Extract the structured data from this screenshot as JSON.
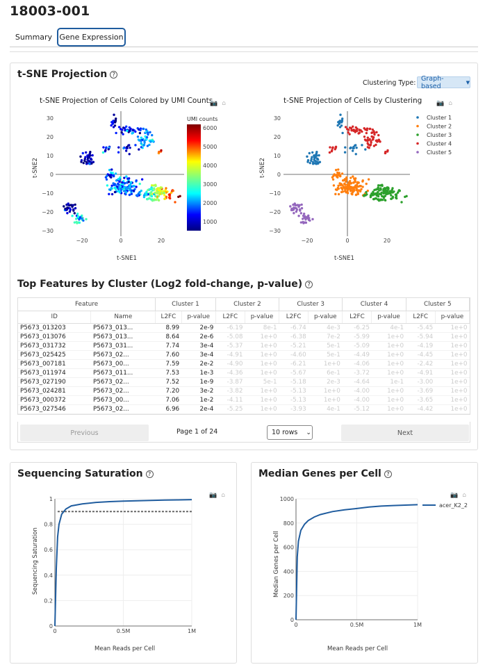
{
  "title": "18003-001",
  "tabs": [
    "Summary",
    "Gene Expression"
  ],
  "tsne": {
    "section_title": "t-SNE Projection",
    "clustering_label": "Clustering Type:",
    "clustering_value": "Graph-based",
    "left_title": "t-SNE Projection of Cells Colored by UMI Counts",
    "right_title": "t-SNE Projection of Cells by Clustering",
    "xlabel": "t-SNE1",
    "ylabel": "t-SNE2",
    "colorbar_title": "UMI counts",
    "colorbar_ticks": [
      "6000",
      "5000",
      "4000",
      "3000",
      "2000",
      "1000"
    ],
    "x_ticks": [
      "−20",
      "0",
      "20"
    ],
    "y_ticks": [
      "30",
      "20",
      "10",
      "0",
      "−10",
      "−20",
      "−30"
    ],
    "clusters": [
      {
        "name": "Cluster 1",
        "color": "#1f77b4"
      },
      {
        "name": "Cluster 2",
        "color": "#ff7f0e"
      },
      {
        "name": "Cluster 3",
        "color": "#2ca02c"
      },
      {
        "name": "Cluster 4",
        "color": "#d62728"
      },
      {
        "name": "Cluster 5",
        "color": "#9467bd"
      }
    ]
  },
  "features": {
    "section_title": "Top Features by Cluster (Log2 fold-change, p-value)",
    "group_headers": [
      "Feature",
      "Cluster 1",
      "Cluster 2",
      "Cluster 3",
      "Cluster 4",
      "Cluster 5"
    ],
    "col_headers": [
      "ID",
      "Name",
      "L2FC",
      "p-value",
      "L2FC",
      "p-value",
      "L2FC",
      "p-value",
      "L2FC",
      "p-value",
      "L2FC",
      "p-value"
    ],
    "rows": [
      [
        "P5673_013203",
        "P5673_013...",
        "8.99",
        "2e-9",
        "-6.19",
        "8e-1",
        "-6.74",
        "4e-3",
        "-6.25",
        "4e-1",
        "-5.45",
        "1e+0"
      ],
      [
        "P5673_013076",
        "P5673_013...",
        "8.64",
        "2e-6",
        "-5.08",
        "1e+0",
        "-6.38",
        "7e-2",
        "-5.99",
        "1e+0",
        "-5.94",
        "1e+0"
      ],
      [
        "P5673_031732",
        "P5673_031...",
        "7.74",
        "3e-4",
        "-5.37",
        "1e+0",
        "-5.21",
        "5e-1",
        "-5.09",
        "1e+0",
        "-4.19",
        "1e+0"
      ],
      [
        "P5673_025425",
        "P5673_02...",
        "7.60",
        "3e-4",
        "-4.91",
        "1e+0",
        "-4.60",
        "5e-1",
        "-4.49",
        "1e+0",
        "-4.45",
        "1e+0"
      ],
      [
        "P5673_007181",
        "P5673_00...",
        "7.59",
        "2e-2",
        "-4.90",
        "1e+0",
        "-6.21",
        "1e+0",
        "-4.06",
        "1e+0",
        "-2.42",
        "1e+0"
      ],
      [
        "P5673_011974",
        "P5673_011...",
        "7.53",
        "1e-3",
        "-4.36",
        "1e+0",
        "-5.67",
        "6e-1",
        "-3.72",
        "1e+0",
        "-4.91",
        "1e+0"
      ],
      [
        "P5673_027190",
        "P5673_02...",
        "7.52",
        "1e-9",
        "-3.87",
        "5e-1",
        "-5.18",
        "2e-3",
        "-4.64",
        "1e-1",
        "-3.00",
        "1e+0"
      ],
      [
        "P5673_024281",
        "P5673_02...",
        "7.20",
        "3e-2",
        "-3.82",
        "1e+0",
        "-5.13",
        "1e+0",
        "-4.00",
        "1e+0",
        "-3.69",
        "1e+0"
      ],
      [
        "P5673_000372",
        "P5673_00...",
        "7.06",
        "1e-2",
        "-4.11",
        "1e+0",
        "-5.13",
        "1e+0",
        "-4.00",
        "1e+0",
        "-3.65",
        "1e+0"
      ],
      [
        "P5673_027546",
        "P5673_02...",
        "6.96",
        "2e-4",
        "-5.25",
        "1e+0",
        "-3.93",
        "4e-1",
        "-5.12",
        "1e+0",
        "-4.42",
        "1e+0"
      ]
    ],
    "prev_label": "Previous",
    "next_label": "Next",
    "page_info": "Page 1 of 24",
    "rows_label": "10 rows"
  },
  "saturation": {
    "section_title": "Sequencing Saturation",
    "xlabel": "Mean Reads per Cell",
    "ylabel": "Sequencing Saturation",
    "x_ticks": [
      "0",
      "0.5M",
      "1M"
    ],
    "y_ticks": [
      "1",
      "0.8",
      "0.6",
      "0.4",
      "0.2",
      "0"
    ]
  },
  "median_genes": {
    "section_title": "Median Genes per Cell",
    "xlabel": "Mean Reads per Cell",
    "ylabel": "Median Genes per Cell",
    "x_ticks": [
      "0",
      "0.5M",
      "1M"
    ],
    "y_ticks": [
      "1000",
      "800",
      "600",
      "400",
      "200",
      "0"
    ],
    "legend": "acer_K2_2"
  },
  "chart_data": [
    {
      "type": "line",
      "title": "Sequencing Saturation",
      "xlabel": "Mean Reads per Cell",
      "ylabel": "Sequencing Saturation",
      "xlim": [
        0,
        1000000
      ],
      "ylim": [
        0,
        1
      ],
      "x": [
        0,
        10000,
        20000,
        30000,
        50000,
        80000,
        120000,
        200000,
        300000,
        400000,
        500000,
        600000,
        700000,
        800000,
        900000,
        1000000
      ],
      "series": [
        {
          "values": [
            0,
            0.45,
            0.7,
            0.8,
            0.88,
            0.92,
            0.945,
            0.96,
            0.972,
            0.978,
            0.982,
            0.985,
            0.988,
            0.99,
            0.992,
            0.994
          ]
        }
      ],
      "reference_line": 0.9
    },
    {
      "type": "line",
      "title": "Median Genes per Cell",
      "xlabel": "Mean Reads per Cell",
      "ylabel": "Median Genes per Cell",
      "xlim": [
        0,
        1000000
      ],
      "ylim": [
        0,
        1000
      ],
      "x": [
        0,
        10000,
        20000,
        40000,
        70000,
        100000,
        150000,
        200000,
        300000,
        400000,
        500000,
        600000,
        700000,
        800000,
        900000,
        1000000
      ],
      "series": [
        {
          "name": "acer_K2_2",
          "values": [
            0,
            520,
            650,
            740,
            790,
            820,
            850,
            870,
            895,
            910,
            920,
            932,
            940,
            945,
            948,
            952
          ]
        }
      ]
    }
  ]
}
